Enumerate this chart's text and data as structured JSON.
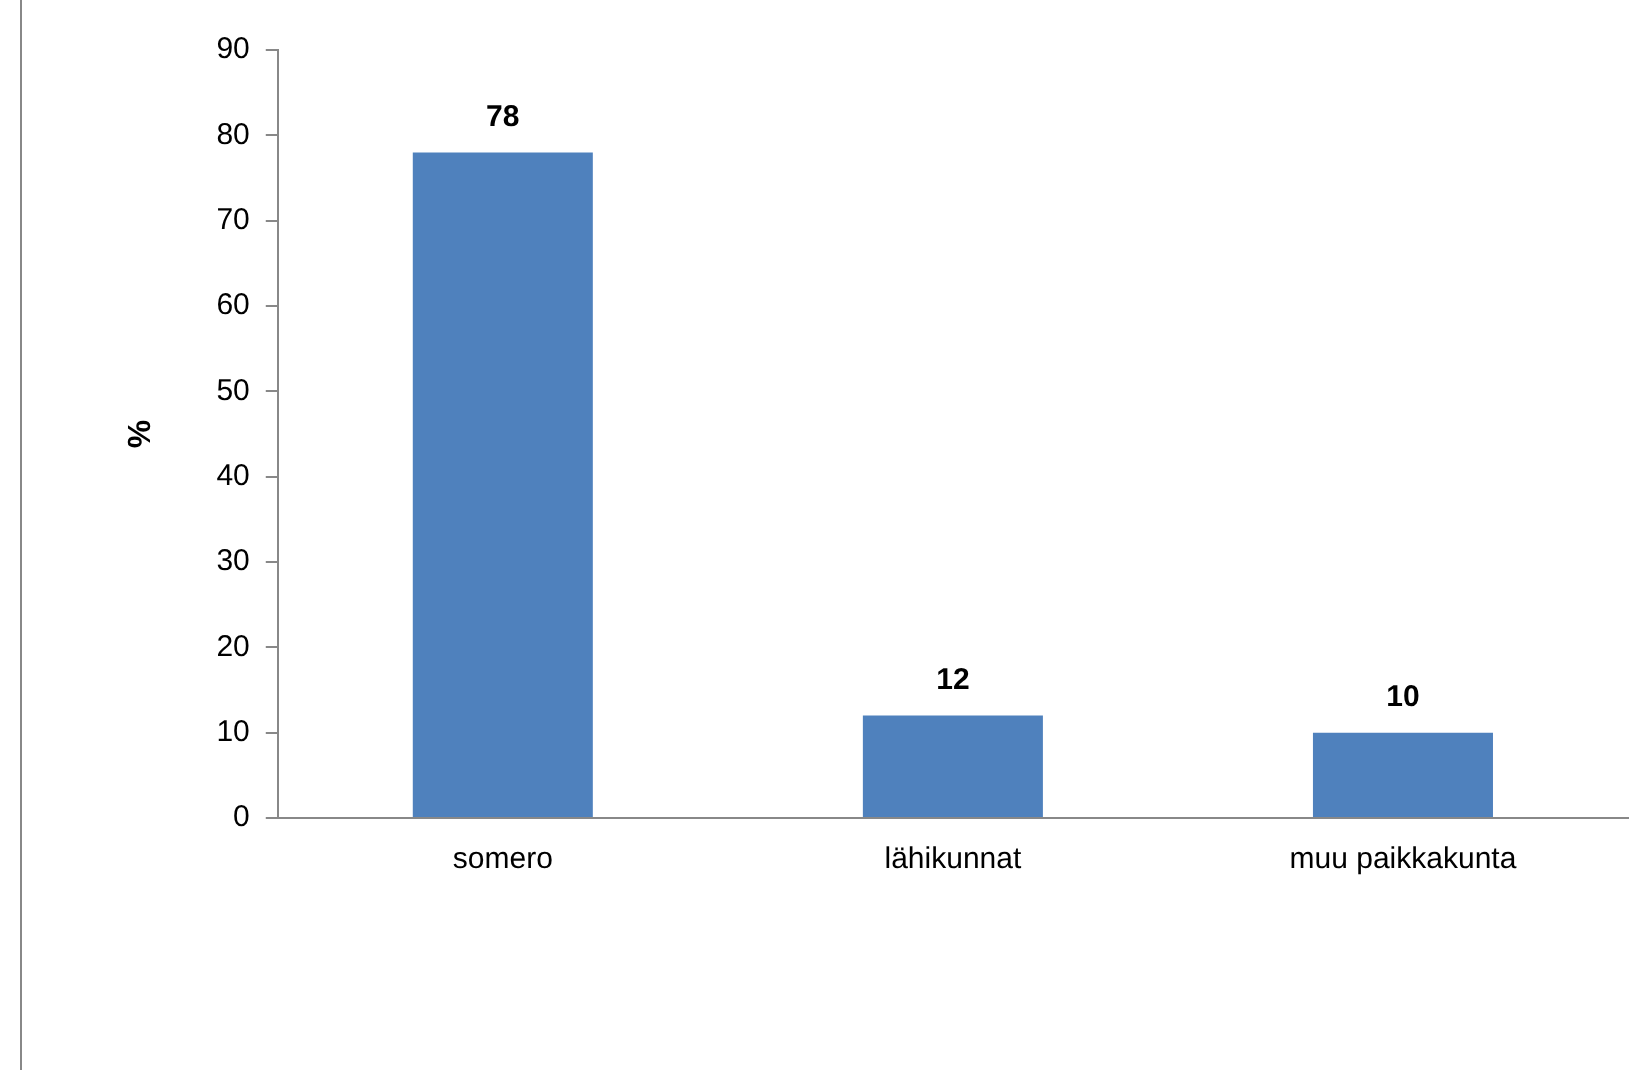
{
  "chart_data": {
    "type": "bar",
    "categories": [
      "somero",
      "lähikunnat",
      "muu paikkakunta"
    ],
    "values": [
      78,
      12,
      10
    ],
    "color": "#4f81bd",
    "ylabel": "%",
    "ylim": [
      0,
      90
    ],
    "yticks": [
      0,
      10,
      20,
      30,
      40,
      50,
      60,
      70,
      80,
      90
    ],
    "data_labels": true,
    "grid": false,
    "legend": false
  }
}
